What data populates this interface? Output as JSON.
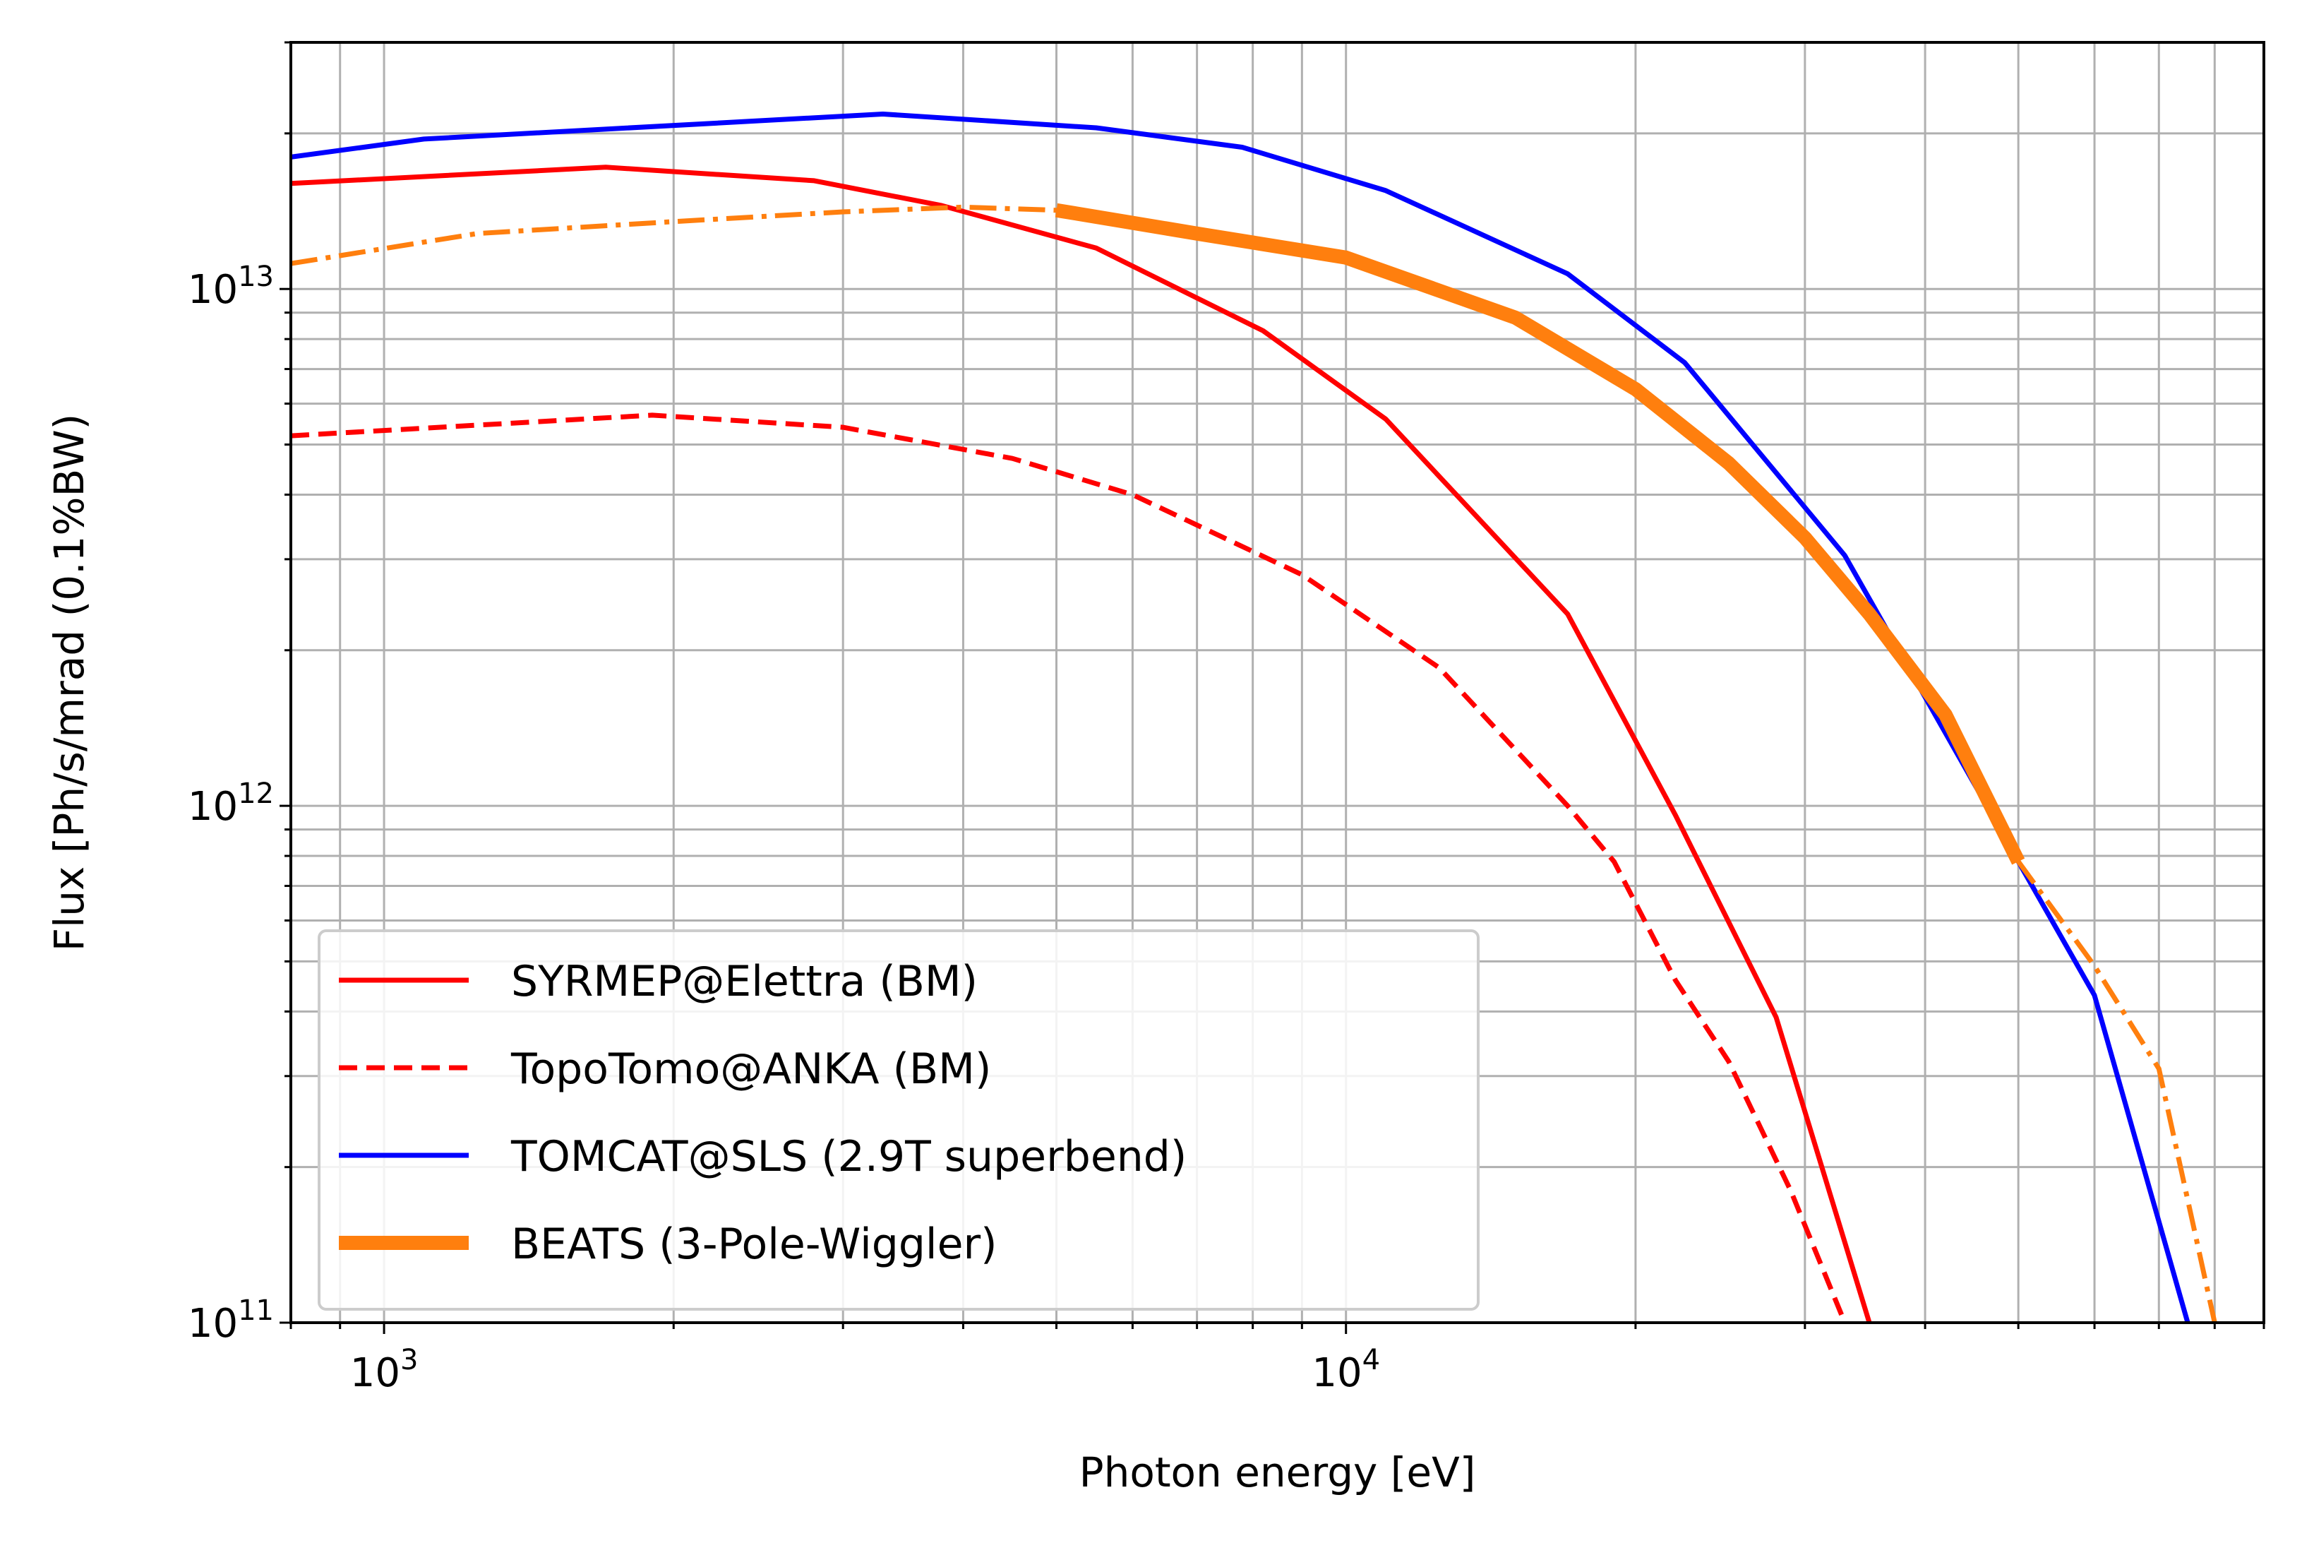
{
  "chart_data": {
    "type": "line",
    "title": "",
    "xlabel": "Photon energy [eV]",
    "ylabel": "Flux [Ph/s/mrad (0.1%BW)",
    "xscale": "log",
    "yscale": "log",
    "xlim": [
      800,
      90000
    ],
    "ylim": [
      100000000000.0,
      30000000000000.0
    ],
    "grid": true,
    "x_ticks": [
      {
        "value": 1000,
        "base": "10",
        "exp": "3"
      },
      {
        "value": 10000,
        "base": "10",
        "exp": "4"
      }
    ],
    "y_ticks": [
      {
        "value": 100000000000.0,
        "base": "10",
        "exp": "11"
      },
      {
        "value": 1000000000000.0,
        "base": "10",
        "exp": "12"
      },
      {
        "value": 10000000000000.0,
        "base": "10",
        "exp": "13"
      }
    ],
    "legend_position": "lower-left",
    "series": [
      {
        "name": "SYRMEP@Elettra (BM)",
        "color": "#ff0000",
        "style": "solid",
        "x": [
          800,
          1700,
          2800,
          3800,
          5500,
          8200,
          11000,
          17000,
          22000,
          28000,
          35000
        ],
        "y": [
          16000000000000.0,
          17200000000000.0,
          16200000000000.0,
          14500000000000.0,
          12000000000000.0,
          8300000000000.0,
          5600000000000.0,
          2350000000000.0,
          960000000000.0,
          390000000000.0,
          100000000000.0
        ]
      },
      {
        "name": "TopoTomo@ANKA (BM)",
        "color": "#ff0000",
        "style": "dashed",
        "x": [
          800,
          1900,
          3000,
          4500,
          6000,
          9000,
          12500,
          17000,
          19000,
          22000,
          25000,
          29000,
          33000
        ],
        "y": [
          5200000000000.0,
          5700000000000.0,
          5400000000000.0,
          4700000000000.0,
          4000000000000.0,
          2800000000000.0,
          1850000000000.0,
          1000000000000.0,
          780000000000.0,
          460000000000.0,
          320000000000.0,
          180000000000.0,
          100000000000.0
        ]
      },
      {
        "name": "TOMCAT@SLS (2.9T superbend)",
        "color": "#0000ff",
        "style": "solid",
        "x": [
          800,
          1100,
          3300,
          5500,
          7800,
          11000,
          17000,
          22500,
          33000,
          50000,
          60000,
          75000
        ],
        "y": [
          18000000000000.0,
          19500000000000.0,
          21800000000000.0,
          20500000000000.0,
          18800000000000.0,
          15500000000000.0,
          10700000000000.0,
          7200000000000.0,
          3050000000000.0,
          780000000000.0,
          430000000000.0,
          100000000000.0
        ]
      },
      {
        "name": "BEATS (3-Pole-Wiggler)",
        "color": "#ff7f0e",
        "style": "dashdot",
        "x": [
          800,
          1250,
          2000,
          3000,
          4000,
          5000,
          7000,
          10000,
          15000,
          20000,
          25000,
          30000,
          35000,
          42000,
          50000,
          60000,
          70000,
          80000
        ],
        "y": [
          11200000000000.0,
          12800000000000.0,
          13500000000000.0,
          14100000000000.0,
          14400000000000.0,
          14200000000000.0,
          12800000000000.0,
          11500000000000.0,
          8800000000000.0,
          6400000000000.0,
          4600000000000.0,
          3300000000000.0,
          2350000000000.0,
          1500000000000.0,
          780000000000.0,
          490000000000.0,
          310000000000.0,
          100000000000.0
        ]
      },
      {
        "name": "BEATS (3-Pole-Wiggler)",
        "color": "#ff7f0e",
        "style": "thick",
        "in_legend": true,
        "x": [
          5000,
          7000,
          10000,
          15000,
          20000,
          25000,
          30000,
          35000,
          42000,
          50000
        ],
        "y": [
          14200000000000.0,
          12800000000000.0,
          11500000000000.0,
          8800000000000.0,
          6400000000000.0,
          4600000000000.0,
          3300000000000.0,
          2350000000000.0,
          1500000000000.0,
          780000000000.0
        ]
      }
    ]
  }
}
